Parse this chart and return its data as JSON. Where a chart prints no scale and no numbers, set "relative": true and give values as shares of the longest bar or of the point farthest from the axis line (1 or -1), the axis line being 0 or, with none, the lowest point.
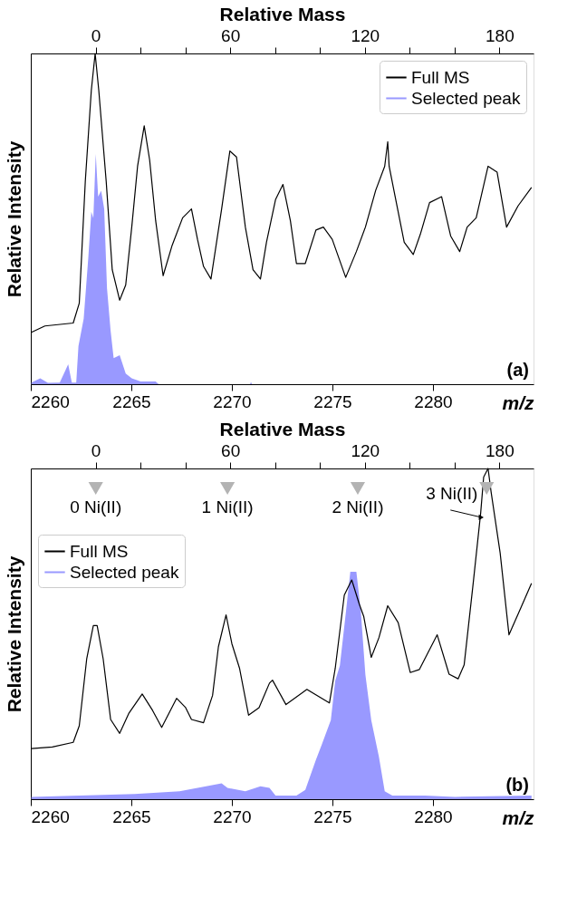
{
  "chart_data": [
    {
      "type": "line",
      "relative": true,
      "xlabel": "m/z",
      "ylabel": "Relative Intensity",
      "x2label": "Relative Mass",
      "xlim": [
        2260,
        2285
      ],
      "xticks": [
        2260,
        2265,
        2270,
        2275,
        2280
      ],
      "x2lim": [
        -28.9,
        195.2
      ],
      "x2ticks": [
        0,
        {
          "value": 20,
          "label": null
        },
        {
          "value": 40,
          "label": null
        },
        60,
        {
          "value": 80,
          "label": null
        },
        {
          "value": 100,
          "label": null
        },
        120,
        {
          "value": 140,
          "label": null
        },
        {
          "value": 160,
          "label": null
        },
        180
      ],
      "legend": "top right",
      "annotations": [
        "(a)"
      ],
      "series": [
        {
          "name": "Full MS",
          "color": "#000000",
          "x": [
            2260.03,
            2260.7,
            2262.11,
            2262.41,
            2262.71,
            2263.01,
            2263.2,
            2263.38,
            2263.75,
            2264.05,
            2264.42,
            2264.72,
            2265.02,
            2265.31,
            2265.64,
            2265.91,
            2266.21,
            2266.58,
            2267.03,
            2267.55,
            2267.99,
            2268.29,
            2268.59,
            2268.96,
            2269.49,
            2269.9,
            2270.23,
            2270.67,
            2271.05,
            2271.42,
            2271.72,
            2272.17,
            2272.54,
            2272.91,
            2273.21,
            2273.65,
            2274.18,
            2274.55,
            2274.99,
            2275.66,
            2276.19,
            2276.64,
            2277.15,
            2277.6,
            2277.75,
            2277.82,
            2278.12,
            2278.57,
            2279.02,
            2279.39,
            2279.83,
            2280.43,
            2280.88,
            2281.33,
            2281.7,
            2282.15,
            2282.74,
            2283.19,
            2283.66,
            2284.23,
            2284.9
          ],
          "values": [
            0.157,
            0.176,
            0.185,
            0.245,
            0.613,
            0.889,
            1.0,
            0.889,
            0.613,
            0.346,
            0.254,
            0.3,
            0.475,
            0.659,
            0.781,
            0.678,
            0.494,
            0.328,
            0.42,
            0.503,
            0.53,
            0.438,
            0.356,
            0.318,
            0.53,
            0.705,
            0.687,
            0.475,
            0.346,
            0.318,
            0.429,
            0.558,
            0.604,
            0.494,
            0.365,
            0.365,
            0.466,
            0.475,
            0.438,
            0.323,
            0.401,
            0.475,
            0.586,
            0.659,
            0.733,
            0.659,
            0.567,
            0.429,
            0.392,
            0.457,
            0.549,
            0.567,
            0.448,
            0.401,
            0.475,
            0.503,
            0.659,
            0.641,
            0.475,
            0.539,
            0.595
          ]
        },
        {
          "name": "Selected peak",
          "color": "#9999ff",
          "type": "area",
          "x": [
            2260.03,
            2260.47,
            2260.85,
            2261.44,
            2261.86,
            2262.04,
            2262.26,
            2262.37,
            2262.63,
            2262.86,
            2263.01,
            2263.11,
            2263.23,
            2263.35,
            2263.5,
            2263.65,
            2263.79,
            2263.97,
            2264.12,
            2264.42,
            2264.72,
            2265.02,
            2265.46,
            2266.21,
            2266.36,
            2270.9,
            2270.95,
            2271.0,
            2284.9
          ],
          "values": [
            0.005,
            0.018,
            0.004,
            0.005,
            0.06,
            0.005,
            0.005,
            0.115,
            0.198,
            0.383,
            0.521,
            0.502,
            0.696,
            0.567,
            0.585,
            0.53,
            0.29,
            0.161,
            0.079,
            0.088,
            0.032,
            0.018,
            0.008,
            0.008,
            0,
            0,
            0.006,
            0,
            0
          ]
        }
      ]
    },
    {
      "type": "line",
      "relative": true,
      "xlabel": "m/z",
      "ylabel": "Relative Intensity",
      "x2label": "Relative Mass",
      "xlim": [
        2260,
        2285
      ],
      "xticks": [
        2260,
        2265,
        2270,
        2275,
        2280
      ],
      "x2lim": [
        -28.9,
        195.2
      ],
      "x2ticks": [
        0,
        {
          "value": 20,
          "label": null
        },
        {
          "value": 40,
          "label": null
        },
        60,
        {
          "value": 80,
          "label": null
        },
        {
          "value": 100,
          "label": null
        },
        120,
        {
          "value": 140,
          "label": null
        },
        {
          "value": 160,
          "label": null
        },
        180
      ],
      "legend": "top left",
      "annotations": [
        "(b)",
        {
          "text": "0 Ni(II)",
          "x": 2263.23,
          "y": 0.94
        },
        {
          "text": "1 Ni(II)",
          "x": 2269.78,
          "y": 0.94
        },
        {
          "text": "2 Ni(II)",
          "x": 2276.26,
          "y": 0.94
        },
        {
          "text": "3 Ni(II)",
          "x": 2282.67,
          "y": 0.94
        }
      ],
      "series": [
        {
          "name": "Full MS",
          "color": "#000000",
          "x": [
            2260.03,
            2261.07,
            2262.11,
            2262.41,
            2262.78,
            2263.11,
            2263.3,
            2263.6,
            2263.97,
            2264.42,
            2264.87,
            2265.54,
            2266.06,
            2266.51,
            2267.25,
            2267.7,
            2267.99,
            2268.59,
            2269.04,
            2269.33,
            2269.71,
            2270.0,
            2270.38,
            2270.83,
            2271.35,
            2271.87,
            2272.02,
            2272.69,
            2273.73,
            2274.85,
            2275.14,
            2275.59,
            2275.96,
            2276.34,
            2276.56,
            2276.93,
            2277.31,
            2277.75,
            2278.27,
            2278.87,
            2279.32,
            2280.21,
            2280.8,
            2281.25,
            2281.55,
            2282.0,
            2282.37,
            2282.52,
            2282.74,
            2282.89,
            2283.34,
            2283.78,
            2284.38,
            2284.9
          ],
          "values": [
            0.153,
            0.158,
            0.172,
            0.222,
            0.424,
            0.525,
            0.525,
            0.424,
            0.241,
            0.199,
            0.259,
            0.318,
            0.268,
            0.217,
            0.305,
            0.277,
            0.241,
            0.231,
            0.314,
            0.461,
            0.557,
            0.47,
            0.396,
            0.254,
            0.277,
            0.351,
            0.36,
            0.286,
            0.332,
            0.291,
            0.396,
            0.617,
            0.663,
            0.589,
            0.552,
            0.429,
            0.488,
            0.585,
            0.534,
            0.383,
            0.392,
            0.497,
            0.378,
            0.364,
            0.406,
            0.653,
            0.864,
            0.974,
            1.0,
            0.929,
            0.745,
            0.497,
            0.58,
            0.653
          ]
        },
        {
          "name": "Selected peak",
          "color": "#9999ff",
          "type": "area",
          "x": [
            2260.03,
            2265.17,
            2267.4,
            2269.49,
            2269.78,
            2270.67,
            2271.42,
            2271.87,
            2272.17,
            2273.21,
            2273.65,
            2274.18,
            2274.47,
            2274.92,
            2275.14,
            2275.37,
            2275.66,
            2275.89,
            2276.19,
            2276.41,
            2276.64,
            2276.93,
            2277.31,
            2277.6,
            2277.98,
            2279.61,
            2281.1,
            2284.9
          ],
          "values": [
            0.007,
            0.016,
            0.024,
            0.048,
            0.034,
            0.024,
            0.039,
            0.034,
            0.011,
            0.011,
            0.028,
            0.119,
            0.165,
            0.239,
            0.358,
            0.404,
            0.56,
            0.688,
            0.688,
            0.569,
            0.376,
            0.239,
            0.129,
            0.024,
            0.011,
            0.011,
            0.007,
            0.011
          ]
        }
      ]
    }
  ]
}
